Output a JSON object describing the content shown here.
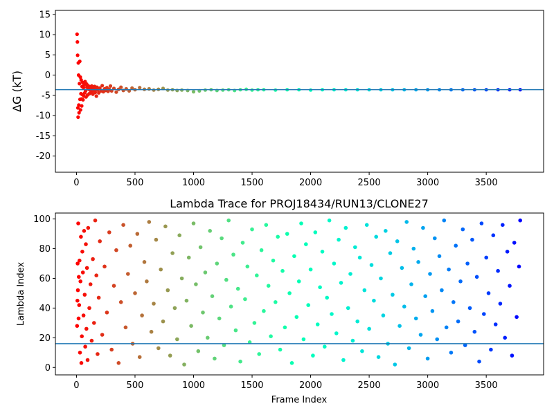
{
  "chart_data": [
    {
      "type": "scatter",
      "title": "",
      "xlabel": "",
      "ylabel": "ΔG (kT)",
      "xlim": [
        -180,
        3990
      ],
      "ylim": [
        -24,
        16
      ],
      "xticks": [
        0,
        500,
        1000,
        1500,
        2000,
        2500,
        3000,
        3500
      ],
      "yticks": [
        -20,
        -15,
        -10,
        -5,
        0,
        5,
        10,
        15
      ],
      "grid": false,
      "colormap": "rainbow (color by frame index)",
      "hline": {
        "y": -3.6,
        "color": "#1f77b4"
      },
      "points": [
        [
          5,
          10.1
        ],
        [
          8,
          8.2
        ],
        [
          10,
          4.9
        ],
        [
          12,
          -8.1
        ],
        [
          14,
          -10.4
        ],
        [
          16,
          3.0
        ],
        [
          18,
          0.0
        ],
        [
          20,
          -7.4
        ],
        [
          22,
          -9.3
        ],
        [
          25,
          -2.1
        ],
        [
          28,
          3.4
        ],
        [
          30,
          -6.0
        ],
        [
          33,
          -0.5
        ],
        [
          35,
          -8.6
        ],
        [
          38,
          -4.6
        ],
        [
          40,
          -1.2
        ],
        [
          42,
          -5.9
        ],
        [
          45,
          -7.6
        ],
        [
          48,
          -2.8
        ],
        [
          50,
          -4.8
        ],
        [
          53,
          -1.8
        ],
        [
          56,
          -6.1
        ],
        [
          60,
          -3.1
        ],
        [
          63,
          -5.2
        ],
        [
          66,
          -2.4
        ],
        [
          70,
          -4.4
        ],
        [
          74,
          -1.6
        ],
        [
          78,
          -3.9
        ],
        [
          82,
          -5.4
        ],
        [
          86,
          -2.2
        ],
        [
          90,
          -3.0
        ],
        [
          95,
          -4.9
        ],
        [
          100,
          -2.6
        ],
        [
          105,
          -3.5
        ],
        [
          110,
          -4.6
        ],
        [
          115,
          -2.9
        ],
        [
          120,
          -3.8
        ],
        [
          125,
          -4.2
        ],
        [
          130,
          -2.7
        ],
        [
          135,
          -3.4
        ],
        [
          140,
          -4.7
        ],
        [
          145,
          -3.1
        ],
        [
          150,
          -3.9
        ],
        [
          155,
          -2.8
        ],
        [
          160,
          -4.3
        ],
        [
          165,
          -3.6
        ],
        [
          170,
          -5.2
        ],
        [
          175,
          -3.0
        ],
        [
          180,
          -3.7
        ],
        [
          190,
          -4.4
        ],
        [
          200,
          -3.2
        ],
        [
          210,
          -3.9
        ],
        [
          220,
          -2.6
        ],
        [
          230,
          -4.1
        ],
        [
          240,
          -3.4
        ],
        [
          250,
          -3.8
        ],
        [
          260,
          -3.1
        ],
        [
          270,
          -4.0
        ],
        [
          280,
          -3.5
        ],
        [
          290,
          -2.7
        ],
        [
          300,
          -3.9
        ],
        [
          320,
          -3.3
        ],
        [
          340,
          -4.2
        ],
        [
          360,
          -3.5
        ],
        [
          380,
          -3.0
        ],
        [
          400,
          -3.8
        ],
        [
          425,
          -3.4
        ],
        [
          450,
          -3.9
        ],
        [
          475,
          -3.2
        ],
        [
          500,
          -3.6
        ],
        [
          540,
          -3.1
        ],
        [
          580,
          -3.5
        ],
        [
          620,
          -3.4
        ],
        [
          660,
          -3.7
        ],
        [
          700,
          -3.5
        ],
        [
          740,
          -3.3
        ],
        [
          780,
          -3.7
        ],
        [
          820,
          -3.6
        ],
        [
          860,
          -3.8
        ],
        [
          900,
          -3.7
        ],
        [
          950,
          -3.8
        ],
        [
          1000,
          -4.1
        ],
        [
          1050,
          -3.9
        ],
        [
          1100,
          -3.7
        ],
        [
          1150,
          -3.6
        ],
        [
          1200,
          -3.8
        ],
        [
          1250,
          -3.7
        ],
        [
          1300,
          -3.6
        ],
        [
          1350,
          -3.8
        ],
        [
          1400,
          -3.6
        ],
        [
          1450,
          -3.5
        ],
        [
          1500,
          -3.7
        ],
        [
          1550,
          -3.6
        ],
        [
          1600,
          -3.6
        ],
        [
          1700,
          -3.7
        ],
        [
          1800,
          -3.6
        ],
        [
          1900,
          -3.6
        ],
        [
          2000,
          -3.7
        ],
        [
          2100,
          -3.6
        ],
        [
          2200,
          -3.6
        ],
        [
          2300,
          -3.6
        ],
        [
          2400,
          -3.6
        ],
        [
          2500,
          -3.6
        ],
        [
          2600,
          -3.6
        ],
        [
          2700,
          -3.6
        ],
        [
          2800,
          -3.6
        ],
        [
          2900,
          -3.6
        ],
        [
          3000,
          -3.6
        ],
        [
          3100,
          -3.6
        ],
        [
          3200,
          -3.6
        ],
        [
          3300,
          -3.6
        ],
        [
          3400,
          -3.6
        ],
        [
          3500,
          -3.6
        ],
        [
          3600,
          -3.6
        ],
        [
          3700,
          -3.6
        ],
        [
          3790,
          -3.6
        ]
      ]
    },
    {
      "type": "scatter",
      "title": "Lambda Trace for PROJ18434/RUN13/CLONE27",
      "xlabel": "Frame Index",
      "ylabel": "Lambda Index",
      "xlim": [
        -180,
        3990
      ],
      "ylim": [
        -5,
        104
      ],
      "xticks": [
        0,
        500,
        1000,
        1500,
        2000,
        2500,
        3000,
        3500
      ],
      "yticks": [
        0,
        20,
        40,
        60,
        80,
        100
      ],
      "grid": false,
      "colormap": "rainbow (color by frame index)",
      "hline": {
        "y": 16,
        "color": "#1f77b4"
      },
      "points": [
        [
          5,
          28
        ],
        [
          8,
          45
        ],
        [
          10,
          70
        ],
        [
          12,
          52
        ],
        [
          15,
          97
        ],
        [
          18,
          33
        ],
        [
          20,
          61
        ],
        [
          23,
          42
        ],
        [
          26,
          72
        ],
        [
          30,
          10
        ],
        [
          34,
          58
        ],
        [
          38,
          88
        ],
        [
          42,
          3
        ],
        [
          46,
          21
        ],
        [
          50,
          78
        ],
        [
          55,
          64
        ],
        [
          60,
          35
        ],
        [
          65,
          92
        ],
        [
          70,
          49
        ],
        [
          75,
          14
        ],
        [
          80,
          83
        ],
        [
          85,
          26
        ],
        [
          90,
          67
        ],
        [
          95,
          5
        ],
        [
          100,
          94
        ],
        [
          110,
          40
        ],
        [
          120,
          56
        ],
        [
          130,
          18
        ],
        [
          140,
          73
        ],
        [
          150,
          30
        ],
        [
          160,
          99
        ],
        [
          170,
          62
        ],
        [
          180,
          9
        ],
        [
          190,
          47
        ],
        [
          200,
          85
        ],
        [
          220,
          22
        ],
        [
          240,
          68
        ],
        [
          260,
          37
        ],
        [
          280,
          91
        ],
        [
          300,
          12
        ],
        [
          320,
          55
        ],
        [
          340,
          79
        ],
        [
          360,
          3
        ],
        [
          380,
          44
        ],
        [
          400,
          96
        ],
        [
          420,
          27
        ],
        [
          440,
          63
        ],
        [
          460,
          82
        ],
        [
          480,
          16
        ],
        [
          500,
          50
        ],
        [
          520,
          90
        ],
        [
          540,
          7
        ],
        [
          560,
          35
        ],
        [
          580,
          71
        ],
        [
          600,
          58
        ],
        [
          620,
          98
        ],
        [
          640,
          24
        ],
        [
          660,
          43
        ],
        [
          680,
          86
        ],
        [
          700,
          13
        ],
        [
          720,
          66
        ],
        [
          740,
          31
        ],
        [
          760,
          95
        ],
        [
          780,
          52
        ],
        [
          800,
          8
        ],
        [
          820,
          77
        ],
        [
          840,
          40
        ],
        [
          860,
          19
        ],
        [
          880,
          89
        ],
        [
          900,
          60
        ],
        [
          920,
          2
        ],
        [
          940,
          45
        ],
        [
          960,
          74
        ],
        [
          980,
          28
        ],
        [
          1000,
          97
        ],
        [
          1020,
          56
        ],
        [
          1040,
          11
        ],
        [
          1060,
          81
        ],
        [
          1080,
          37
        ],
        [
          1100,
          64
        ],
        [
          1120,
          20
        ],
        [
          1140,
          92
        ],
        [
          1160,
          48
        ],
        [
          1180,
          6
        ],
        [
          1200,
          70
        ],
        [
          1220,
          33
        ],
        [
          1240,
          87
        ],
        [
          1260,
          15
        ],
        [
          1280,
          59
        ],
        [
          1300,
          99
        ],
        [
          1320,
          41
        ],
        [
          1340,
          76
        ],
        [
          1360,
          25
        ],
        [
          1380,
          53
        ],
        [
          1400,
          4
        ],
        [
          1420,
          84
        ],
        [
          1440,
          46
        ],
        [
          1460,
          68
        ],
        [
          1480,
          17
        ],
        [
          1500,
          93
        ],
        [
          1520,
          30
        ],
        [
          1540,
          62
        ],
        [
          1560,
          9
        ],
        [
          1580,
          79
        ],
        [
          1600,
          38
        ],
        [
          1620,
          96
        ],
        [
          1640,
          55
        ],
        [
          1660,
          21
        ],
        [
          1680,
          72
        ],
        [
          1700,
          44
        ],
        [
          1720,
          88
        ],
        [
          1740,
          12
        ],
        [
          1760,
          65
        ],
        [
          1780,
          27
        ],
        [
          1800,
          90
        ],
        [
          1820,
          50
        ],
        [
          1840,
          3
        ],
        [
          1860,
          75
        ],
        [
          1880,
          34
        ],
        [
          1900,
          58
        ],
        [
          1920,
          97
        ],
        [
          1940,
          19
        ],
        [
          1960,
          83
        ],
        [
          1980,
          42
        ],
        [
          2000,
          66
        ],
        [
          2020,
          8
        ],
        [
          2040,
          91
        ],
        [
          2060,
          29
        ],
        [
          2080,
          54
        ],
        [
          2100,
          78
        ],
        [
          2120,
          14
        ],
        [
          2140,
          47
        ],
        [
          2160,
          99
        ],
        [
          2180,
          36
        ],
        [
          2200,
          70
        ],
        [
          2220,
          23
        ],
        [
          2240,
          86
        ],
        [
          2260,
          57
        ],
        [
          2280,
          5
        ],
        [
          2300,
          94
        ],
        [
          2320,
          40
        ],
        [
          2340,
          63
        ],
        [
          2360,
          18
        ],
        [
          2380,
          81
        ],
        [
          2400,
          31
        ],
        [
          2420,
          74
        ],
        [
          2440,
          11
        ],
        [
          2460,
          52
        ],
        [
          2480,
          96
        ],
        [
          2500,
          26
        ],
        [
          2520,
          69
        ],
        [
          2540,
          45
        ],
        [
          2560,
          88
        ],
        [
          2580,
          7
        ],
        [
          2600,
          60
        ],
        [
          2620,
          35
        ],
        [
          2640,
          92
        ],
        [
          2660,
          16
        ],
        [
          2680,
          77
        ],
        [
          2700,
          49
        ],
        [
          2720,
          2
        ],
        [
          2740,
          85
        ],
        [
          2760,
          28
        ],
        [
          2780,
          67
        ],
        [
          2800,
          41
        ],
        [
          2820,
          98
        ],
        [
          2840,
          13
        ],
        [
          2860,
          56
        ],
        [
          2880,
          80
        ],
        [
          2900,
          33
        ],
        [
          2920,
          71
        ],
        [
          2940,
          22
        ],
        [
          2960,
          94
        ],
        [
          2980,
          48
        ],
        [
          3000,
          6
        ],
        [
          3020,
          63
        ],
        [
          3040,
          38
        ],
        [
          3060,
          87
        ],
        [
          3080,
          19
        ],
        [
          3100,
          75
        ],
        [
          3120,
          52
        ],
        [
          3140,
          99
        ],
        [
          3160,
          27
        ],
        [
          3180,
          66
        ],
        [
          3200,
          10
        ],
        [
          3220,
          44
        ],
        [
          3240,
          82
        ],
        [
          3260,
          31
        ],
        [
          3280,
          58
        ],
        [
          3300,
          93
        ],
        [
          3320,
          15
        ],
        [
          3340,
          70
        ],
        [
          3360,
          40
        ],
        [
          3380,
          86
        ],
        [
          3400,
          24
        ],
        [
          3420,
          61
        ],
        [
          3440,
          4
        ],
        [
          3460,
          97
        ],
        [
          3480,
          36
        ],
        [
          3500,
          74
        ],
        [
          3520,
          50
        ],
        [
          3540,
          12
        ],
        [
          3560,
          89
        ],
        [
          3580,
          29
        ],
        [
          3600,
          65
        ],
        [
          3620,
          43
        ],
        [
          3640,
          96
        ],
        [
          3660,
          20
        ],
        [
          3680,
          78
        ],
        [
          3700,
          55
        ],
        [
          3720,
          8
        ],
        [
          3740,
          84
        ],
        [
          3760,
          34
        ],
        [
          3780,
          68
        ],
        [
          3790,
          99
        ]
      ]
    }
  ]
}
